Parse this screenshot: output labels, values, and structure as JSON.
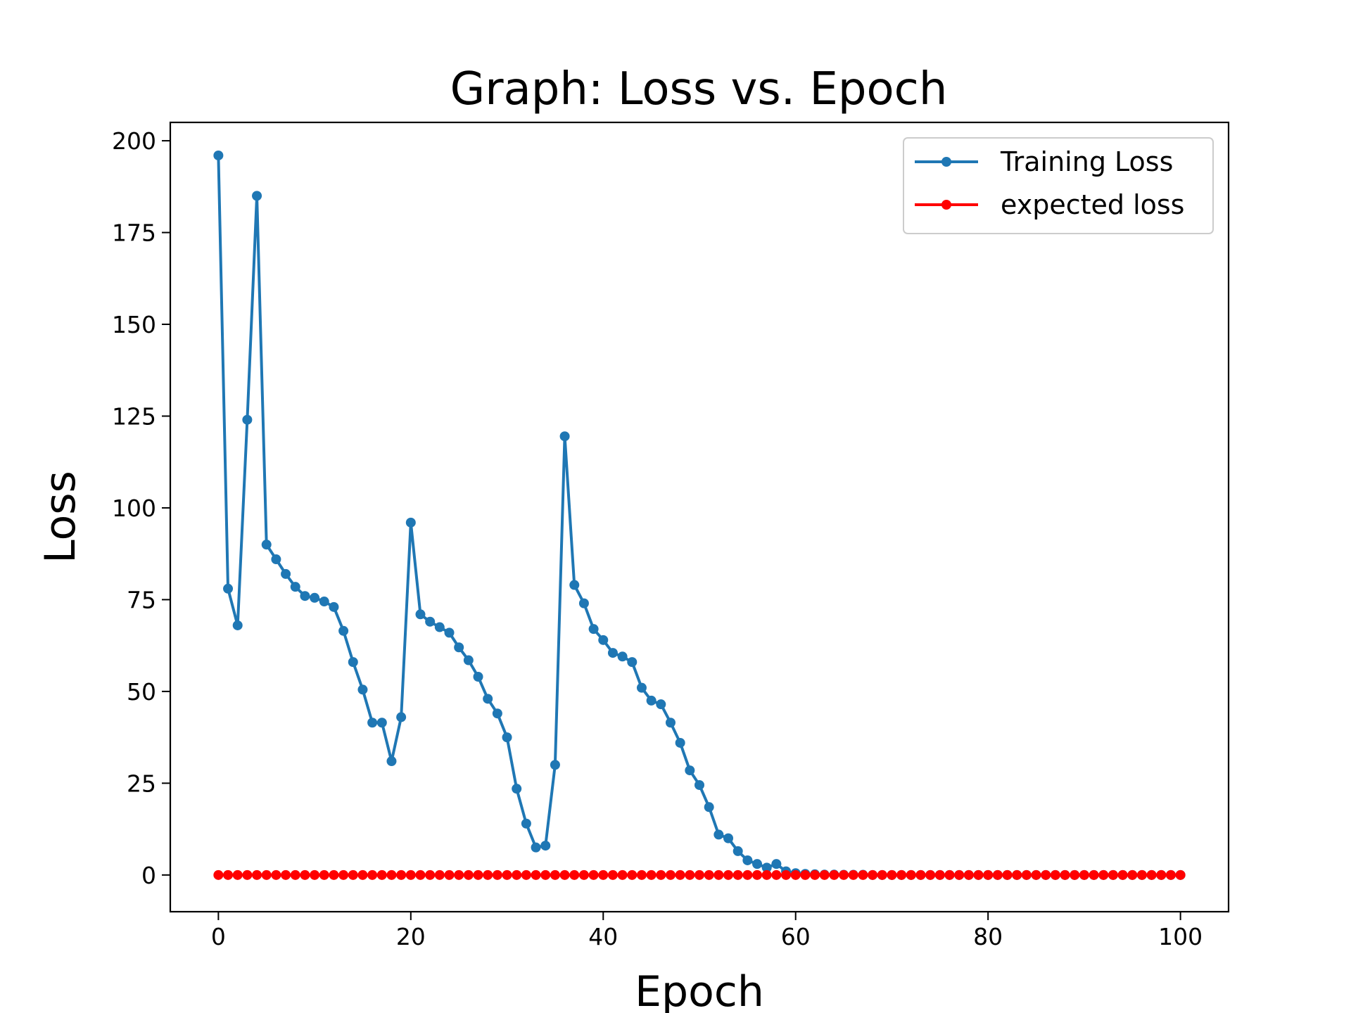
{
  "chart_data": {
    "type": "line",
    "title": "Graph: Loss vs. Epoch",
    "xlabel": "Epoch",
    "ylabel": "Loss",
    "xlim": [
      -5,
      105
    ],
    "ylim": [
      -10,
      205
    ],
    "xticks": [
      0,
      20,
      40,
      60,
      80,
      100
    ],
    "yticks": [
      0,
      25,
      50,
      75,
      100,
      125,
      150,
      175,
      200
    ],
    "grid": false,
    "legend_position": "top-right",
    "series": [
      {
        "name": "Training Loss",
        "color": "#1f77b4",
        "x": [
          0,
          1,
          2,
          3,
          4,
          5,
          6,
          7,
          8,
          9,
          10,
          11,
          12,
          13,
          14,
          15,
          16,
          17,
          18,
          19,
          20,
          21,
          22,
          23,
          24,
          25,
          26,
          27,
          28,
          29,
          30,
          31,
          32,
          33,
          34,
          35,
          36,
          37,
          38,
          39,
          40,
          41,
          42,
          43,
          44,
          45,
          46,
          47,
          48,
          49,
          50,
          51,
          52,
          53,
          54,
          55,
          56,
          57,
          58,
          59,
          60,
          61,
          62,
          63,
          64,
          65,
          66,
          67,
          68,
          69,
          70,
          71,
          72,
          73,
          74,
          75,
          76,
          77,
          78,
          79,
          80,
          81,
          82,
          83,
          84,
          85,
          86,
          87,
          88,
          89,
          90,
          91,
          92,
          93,
          94,
          95,
          96,
          97,
          98,
          99,
          100
        ],
        "values": [
          196,
          78,
          68,
          124,
          185,
          90,
          86,
          82,
          78.5,
          76,
          75.5,
          74.5,
          73,
          66.5,
          58,
          50.5,
          41.5,
          41.5,
          31,
          43,
          96,
          71,
          69,
          67.5,
          66,
          62,
          58.5,
          54,
          48,
          44,
          37.5,
          23.5,
          14,
          7.5,
          8,
          30,
          119.5,
          79,
          74,
          67,
          64,
          60.5,
          59.5,
          58,
          51,
          47.5,
          46.5,
          41.5,
          36,
          28.5,
          24.5,
          18.5,
          11,
          10,
          6.5,
          4,
          3,
          2,
          3,
          1,
          0.5,
          0.3,
          0.2,
          0.1,
          0.1,
          0.05,
          0.05,
          0.05,
          0,
          0,
          0,
          0,
          0,
          0,
          0,
          0,
          0,
          0,
          0,
          0,
          0,
          0,
          0,
          0,
          0,
          0,
          0,
          0,
          0,
          0,
          0,
          0,
          0,
          0,
          0,
          0,
          0,
          0,
          0,
          0,
          0
        ]
      },
      {
        "name": "expected loss",
        "color": "#ff0000",
        "x": [
          0,
          1,
          2,
          3,
          4,
          5,
          6,
          7,
          8,
          9,
          10,
          11,
          12,
          13,
          14,
          15,
          16,
          17,
          18,
          19,
          20,
          21,
          22,
          23,
          24,
          25,
          26,
          27,
          28,
          29,
          30,
          31,
          32,
          33,
          34,
          35,
          36,
          37,
          38,
          39,
          40,
          41,
          42,
          43,
          44,
          45,
          46,
          47,
          48,
          49,
          50,
          51,
          52,
          53,
          54,
          55,
          56,
          57,
          58,
          59,
          60,
          61,
          62,
          63,
          64,
          65,
          66,
          67,
          68,
          69,
          70,
          71,
          72,
          73,
          74,
          75,
          76,
          77,
          78,
          79,
          80,
          81,
          82,
          83,
          84,
          85,
          86,
          87,
          88,
          89,
          90,
          91,
          92,
          93,
          94,
          95,
          96,
          97,
          98,
          99,
          100
        ],
        "values": [
          0,
          0,
          0,
          0,
          0,
          0,
          0,
          0,
          0,
          0,
          0,
          0,
          0,
          0,
          0,
          0,
          0,
          0,
          0,
          0,
          0,
          0,
          0,
          0,
          0,
          0,
          0,
          0,
          0,
          0,
          0,
          0,
          0,
          0,
          0,
          0,
          0,
          0,
          0,
          0,
          0,
          0,
          0,
          0,
          0,
          0,
          0,
          0,
          0,
          0,
          0,
          0,
          0,
          0,
          0,
          0,
          0,
          0,
          0,
          0,
          0,
          0,
          0,
          0,
          0,
          0,
          0,
          0,
          0,
          0,
          0,
          0,
          0,
          0,
          0,
          0,
          0,
          0,
          0,
          0,
          0,
          0,
          0,
          0,
          0,
          0,
          0,
          0,
          0,
          0,
          0,
          0,
          0,
          0,
          0,
          0,
          0,
          0,
          0,
          0,
          0
        ]
      }
    ]
  }
}
